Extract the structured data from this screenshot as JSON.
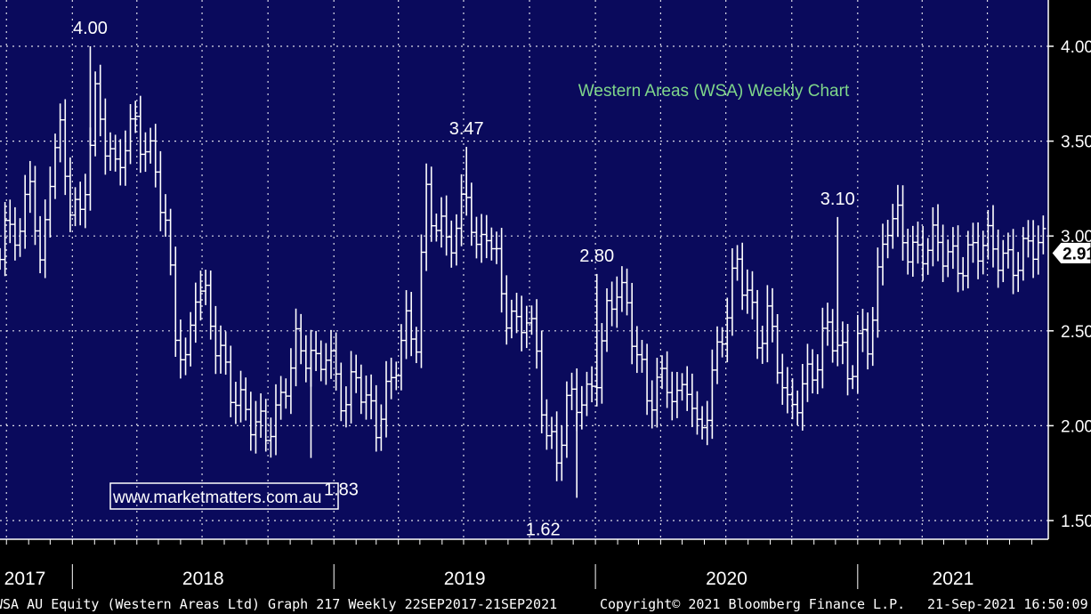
{
  "chart_data": {
    "type": "ohlc",
    "title": "Western Areas (WSA) Weekly Chart",
    "ylim": [
      1.4,
      4.25
    ],
    "grid": true,
    "y_ticks": [
      {
        "value": 4.0,
        "label": "4.00"
      },
      {
        "value": 3.5,
        "label": "3.50"
      },
      {
        "value": 3.0,
        "label": "3.00"
      },
      {
        "value": 2.5,
        "label": "2.50"
      },
      {
        "value": 2.0,
        "label": "2.00"
      },
      {
        "value": 1.5,
        "label": "1.50"
      }
    ],
    "x_ticks": [
      "2017",
      "2018",
      "2019",
      "2020",
      "2021"
    ],
    "current_price": {
      "value": 2.91,
      "label": "2.91"
    },
    "annotations": [
      {
        "text": "4.00",
        "date": "2018-01-26",
        "value": 4.0,
        "pos": "above"
      },
      {
        "text": "1.83",
        "date": "2018-11-30",
        "value": 1.83,
        "pos": "below-right"
      },
      {
        "text": "3.47",
        "date": "2019-07-05",
        "value": 3.47,
        "pos": "above"
      },
      {
        "text": "1.62",
        "date": "2019-12-06",
        "value": 1.62,
        "pos": "below-left"
      },
      {
        "text": "2.80",
        "date": "2020-01-03",
        "value": 2.8,
        "pos": "above"
      },
      {
        "text": "3.10",
        "date": "2020-12-04",
        "value": 3.1,
        "pos": "above"
      }
    ],
    "prices": [
      [
        "2017-09-22",
        2.82
      ],
      [
        "2017-10-06",
        3.05
      ],
      [
        "2017-10-20",
        3.0
      ],
      [
        "2017-11-03",
        3.42
      ],
      [
        "2017-11-17",
        2.8
      ],
      [
        "2017-12-01",
        3.3
      ],
      [
        "2017-12-15",
        3.48
      ],
      [
        "2017-12-29",
        3.2
      ],
      [
        "2018-01-12",
        3.15
      ],
      [
        "2018-01-19",
        3.35
      ],
      [
        "2018-02-02",
        3.7
      ],
      [
        "2018-02-16",
        3.45
      ],
      [
        "2018-03-02",
        3.3
      ],
      [
        "2018-03-16",
        3.55
      ],
      [
        "2018-03-30",
        3.65
      ],
      [
        "2018-04-13",
        3.45
      ],
      [
        "2018-04-27",
        3.3
      ],
      [
        "2018-05-11",
        3.0
      ],
      [
        "2018-05-25",
        2.55
      ],
      [
        "2018-06-08",
        2.35
      ],
      [
        "2018-06-22",
        2.75
      ],
      [
        "2018-07-06",
        2.6
      ],
      [
        "2018-07-20",
        2.4
      ],
      [
        "2018-08-03",
        2.3
      ],
      [
        "2018-08-17",
        2.2
      ],
      [
        "2018-08-31",
        2.1
      ],
      [
        "2018-09-14",
        1.95
      ],
      [
        "2018-09-28",
        1.92
      ],
      [
        "2018-10-12",
        2.05
      ],
      [
        "2018-10-26",
        2.3
      ],
      [
        "2018-11-09",
        2.45
      ],
      [
        "2018-11-23",
        2.35
      ],
      [
        "2018-12-07",
        2.25
      ],
      [
        "2018-12-21",
        2.4
      ],
      [
        "2019-01-04",
        2.3
      ],
      [
        "2019-01-18",
        2.15
      ],
      [
        "2019-02-01",
        2.25
      ],
      [
        "2019-02-15",
        2.05
      ],
      [
        "2019-03-01",
        2.0
      ],
      [
        "2019-03-15",
        2.2
      ],
      [
        "2019-03-29",
        2.4
      ],
      [
        "2019-04-12",
        2.5
      ],
      [
        "2019-04-26",
        2.4
      ],
      [
        "2019-05-10",
        3.2
      ],
      [
        "2019-05-24",
        3.1
      ],
      [
        "2019-06-07",
        3.05
      ],
      [
        "2019-06-21",
        3.0
      ],
      [
        "2019-07-05",
        3.2
      ],
      [
        "2019-07-19",
        2.85
      ],
      [
        "2019-08-02",
        3.1
      ],
      [
        "2019-08-16",
        2.9
      ],
      [
        "2019-08-30",
        2.6
      ],
      [
        "2019-09-13",
        2.45
      ],
      [
        "2019-09-27",
        2.55
      ],
      [
        "2019-10-11",
        2.4
      ],
      [
        "2019-10-25",
        2.0
      ],
      [
        "2019-11-08",
        1.85
      ],
      [
        "2019-11-22",
        2.05
      ],
      [
        "2019-12-06",
        2.1
      ],
      [
        "2019-12-20",
        2.15
      ],
      [
        "2020-01-03",
        2.35
      ],
      [
        "2020-01-17",
        2.6
      ],
      [
        "2020-01-31",
        2.7
      ],
      [
        "2020-02-14",
        2.55
      ],
      [
        "2020-02-28",
        2.4
      ],
      [
        "2020-03-13",
        2.2
      ],
      [
        "2020-03-27",
        2.25
      ],
      [
        "2020-04-10",
        2.2
      ],
      [
        "2020-04-24",
        2.05
      ],
      [
        "2020-05-08",
        2.25
      ],
      [
        "2020-05-22",
        2.0
      ],
      [
        "2020-06-05",
        2.15
      ],
      [
        "2020-06-19",
        2.35
      ],
      [
        "2020-07-03",
        2.55
      ],
      [
        "2020-07-17",
        2.85
      ],
      [
        "2020-07-31",
        2.75
      ],
      [
        "2020-08-14",
        2.5
      ],
      [
        "2020-08-28",
        2.55
      ],
      [
        "2020-09-11",
        2.3
      ],
      [
        "2020-09-25",
        2.05
      ],
      [
        "2020-10-09",
        2.2
      ],
      [
        "2020-10-23",
        2.3
      ],
      [
        "2020-11-06",
        2.35
      ],
      [
        "2020-11-20",
        2.45
      ],
      [
        "2020-12-04",
        2.4
      ],
      [
        "2020-12-18",
        2.3
      ],
      [
        "2021-01-01",
        2.5
      ],
      [
        "2021-01-15",
        2.45
      ],
      [
        "2021-01-29",
        2.7
      ],
      [
        "2021-02-12",
        3.05
      ],
      [
        "2021-02-26",
        3.1
      ],
      [
        "2021-03-12",
        3.0
      ],
      [
        "2021-03-26",
        2.91
      ]
    ]
  },
  "watermark": "www.marketmatters.com.au",
  "footer": {
    "left": "WSA AU Equity (Western Areas Ltd) Graph 217  Weekly 22SEP2017-21SEP2021",
    "middle": "Copyright© 2021 Bloomberg Finance L.P.",
    "right": "21-Sep-2021 16:50:09"
  },
  "colors": {
    "plot_bg": "#0a0a5c",
    "grid": "#ffffff",
    "bars": "#ffffff",
    "title": "#7fd68a"
  }
}
